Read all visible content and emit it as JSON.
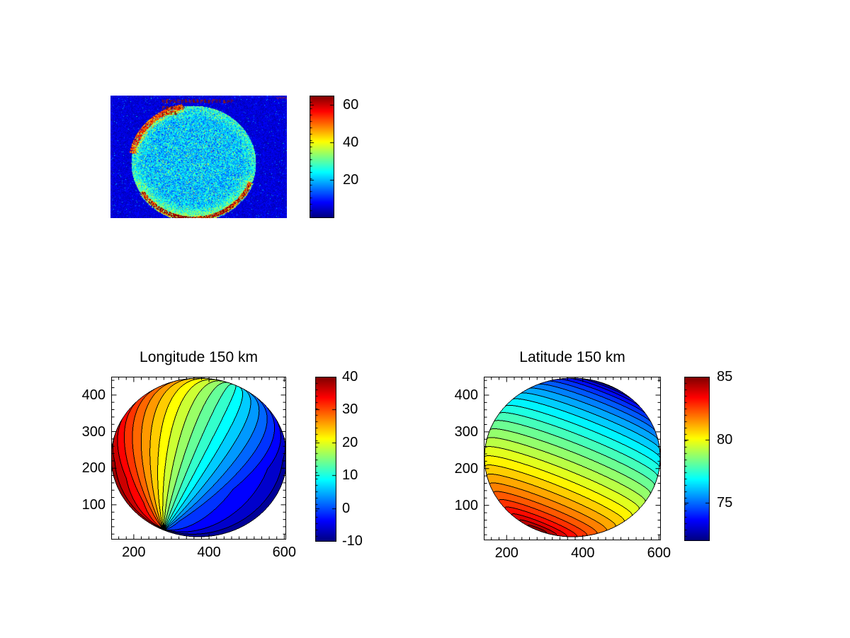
{
  "figure": {
    "background": "#ffffff",
    "line_color": "#000000",
    "annotation_red": "#991500",
    "colormap": "jet"
  },
  "chart_data": [
    {
      "panel": "raw-image",
      "type": "heatmap",
      "title": "",
      "colormap": "jet",
      "clim": [
        0,
        65
      ],
      "axes_visible": false,
      "colorbar": {
        "position": "right",
        "ticks": [
          60,
          40,
          20
        ]
      },
      "content": "noisy speckled circular disk (planetary limb image) on dark-blue background; cyan-green noisy disk, bright red-orange arc on upper-left limb, orange-yellow arc along lower limb, small illegible dark-red annotation glyphs near the top of the disk and in the top-right corner"
    },
    {
      "panel": "longitude-map",
      "type": "contourf",
      "title": "Longitude 150 km",
      "colormap": "jet",
      "xlim": [
        140,
        605
      ],
      "ylim": [
        5,
        450
      ],
      "xticks": [
        200,
        400,
        600
      ],
      "yticks": [
        400,
        300,
        200,
        100
      ],
      "minor_tick_step": 20,
      "clim": [
        -10,
        40
      ],
      "contour_step": 2.5,
      "colorbar": {
        "position": "right",
        "ticks": [
          40,
          30,
          20,
          10,
          0,
          -10
        ]
      },
      "pattern": "filled contour bands of longitude over a disk; meridian-like curves converge at a point on the lower-left limb and bunch near the upper-right limb; value 40 (dark red) at left limb decreasing smoothly to -10 (dark blue) at right limb; green (~15) through disk center",
      "grid": false
    },
    {
      "panel": "latitude-map",
      "type": "contourf",
      "title": "Latitude 150 km",
      "colormap": "jet",
      "xlim": [
        140,
        605
      ],
      "ylim": [
        5,
        450
      ],
      "xticks": [
        200,
        400,
        600
      ],
      "yticks": [
        400,
        300,
        200,
        100
      ],
      "minor_tick_step": 20,
      "clim": [
        72,
        85
      ],
      "contour_step": 0.5,
      "colorbar": {
        "position": "right",
        "ticks": [
          85,
          80,
          75
        ]
      },
      "pattern": "filled contour bands of latitude; concentric arcs around a pole at the lower-left limb; 85 (dark red) packed at lower-left limb, orange along bottom, green (~78.5) across middle, cyan then dark blue (72) packed at upper-right limb",
      "grid": false
    }
  ]
}
